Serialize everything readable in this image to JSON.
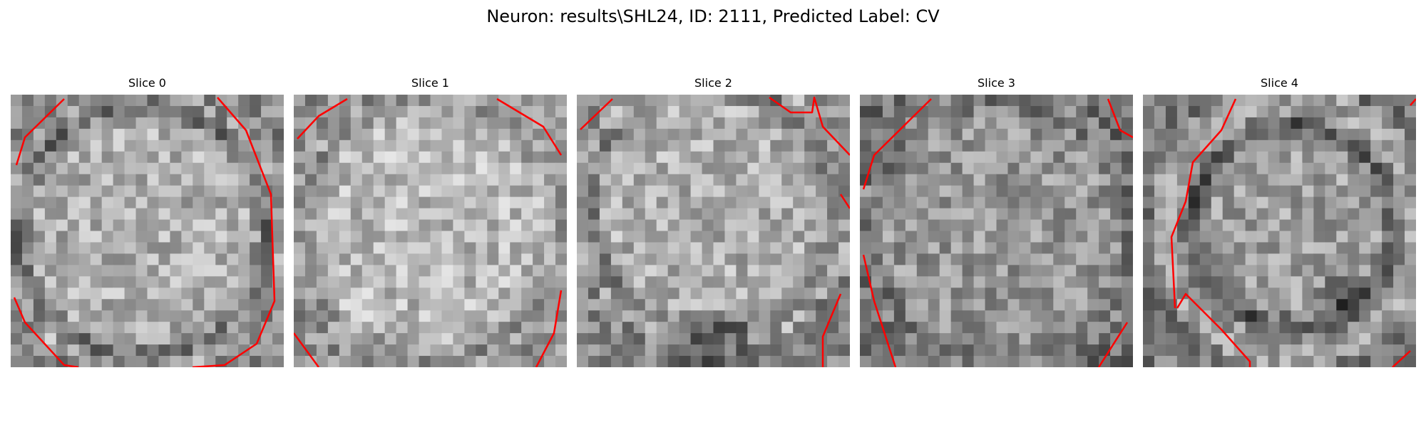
{
  "figure": {
    "title": "Neuron: results\\SHL24, ID: 2111, Predicted Label: CV"
  },
  "style": {
    "background": "#ffffff",
    "contour_color": "#ff0000",
    "colormap": "grayscale"
  },
  "panels": [
    {
      "title": "Slice 0",
      "image_description": "Noisy grayscale pixel block of a round bright cell with a darker rim; red contour segments at top-left, along the right side, and bottom-left."
    },
    {
      "title": "Slice 1",
      "image_description": "Noisy grayscale pixel block, mostly bright, faint darker edges; short red contour segments at the four corners."
    },
    {
      "title": "Slice 2",
      "image_description": "Noisy grayscale pixel block, bright centre with dark band at the bottom; red contour segments at top-left, top-right and right edge."
    },
    {
      "title": "Slice 3",
      "image_description": "Noisy grayscale pixel block, medium gray; red contour segments at upper-left diagonal, top-right, left side and bottom-right."
    },
    {
      "title": "Slice 4",
      "image_description": "Noisy grayscale pixel block with a dark ring outline and dark blob on the right; red contour running down the left side to the bottom."
    }
  ]
}
